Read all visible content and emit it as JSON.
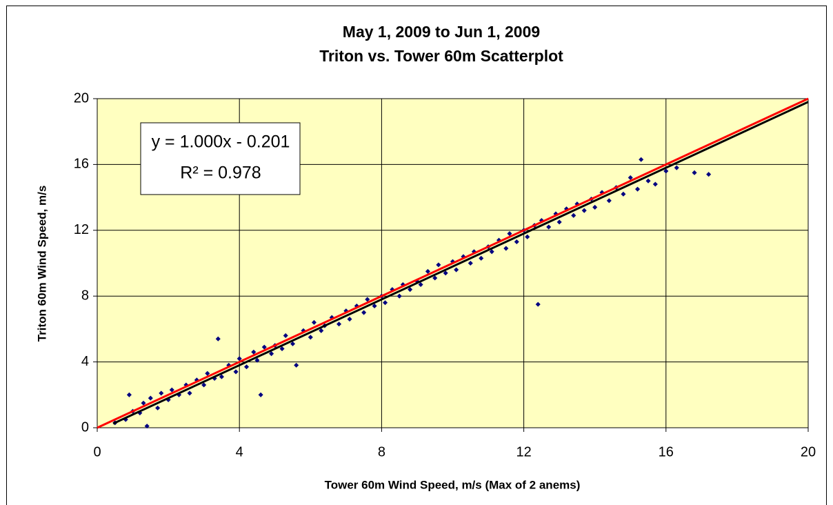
{
  "chart_data": {
    "type": "scatter",
    "title": [
      "May 1, 2009 to Jun 1, 2009",
      "Triton vs. Tower 60m Scatterplot"
    ],
    "x_label": "Tower 60m Wind Speed, m/s (Max of 2 anems)",
    "y_label": "Triton 60m Wind Speed, m/s",
    "annotations": [
      "y = 1.000x - 0.201",
      "R² = 0.978"
    ],
    "xlim": [
      0,
      20
    ],
    "ylim": [
      0,
      20
    ],
    "xticks": [
      0,
      4,
      8,
      12,
      16,
      20
    ],
    "yticks": [
      0,
      4,
      8,
      12,
      16,
      20
    ],
    "grid": true,
    "background": "#ffffc0",
    "x": [
      0.5,
      0.8,
      0.9,
      1.0,
      1.2,
      1.3,
      1.4,
      1.5,
      1.7,
      1.8,
      2.0,
      2.1,
      2.3,
      2.5,
      2.6,
      2.8,
      3.0,
      3.1,
      3.3,
      3.4,
      3.5,
      3.7,
      3.9,
      4.0,
      4.2,
      4.4,
      4.5,
      4.6,
      4.7,
      4.9,
      5.0,
      5.2,
      5.3,
      5.5,
      5.6,
      5.8,
      6.0,
      6.1,
      6.3,
      6.4,
      6.6,
      6.8,
      7.0,
      7.1,
      7.3,
      7.5,
      7.6,
      7.8,
      8.0,
      8.1,
      8.3,
      8.5,
      8.6,
      8.8,
      9.0,
      9.1,
      9.3,
      9.5,
      9.6,
      9.8,
      10.0,
      10.1,
      10.3,
      10.5,
      10.6,
      10.8,
      11.0,
      11.1,
      11.3,
      11.5,
      11.6,
      11.8,
      12.0,
      12.1,
      12.3,
      12.4,
      12.5,
      12.7,
      12.9,
      13.0,
      13.2,
      13.4,
      13.5,
      13.7,
      13.9,
      14.0,
      14.2,
      14.4,
      14.6,
      14.8,
      15.0,
      15.2,
      15.3,
      15.5,
      15.7,
      16.0,
      16.3,
      16.8,
      17.2
    ],
    "series": [
      {
        "color": "#000080",
        "values": [
          0.3,
          0.5,
          2.0,
          1.0,
          0.9,
          1.5,
          0.1,
          1.8,
          1.2,
          2.1,
          1.7,
          2.3,
          2.0,
          2.6,
          2.1,
          2.9,
          2.6,
          3.3,
          3.0,
          5.4,
          3.1,
          3.8,
          3.4,
          4.2,
          3.7,
          4.6,
          4.1,
          2.0,
          4.9,
          4.5,
          5.0,
          4.8,
          5.6,
          5.1,
          3.8,
          5.9,
          5.5,
          6.4,
          5.9,
          6.2,
          6.7,
          6.3,
          7.1,
          6.6,
          7.4,
          7.0,
          7.8,
          7.4,
          8.0,
          7.6,
          8.4,
          8.0,
          8.7,
          8.4,
          8.9,
          8.7,
          9.5,
          9.1,
          9.9,
          9.4,
          10.1,
          9.6,
          10.4,
          10.0,
          10.7,
          10.3,
          11.0,
          10.7,
          11.4,
          10.9,
          11.8,
          11.3,
          12.0,
          11.6,
          12.3,
          7.5,
          12.6,
          12.2,
          13.0,
          12.5,
          13.3,
          12.9,
          13.6,
          13.2,
          13.9,
          13.4,
          14.3,
          13.8,
          14.6,
          14.2,
          15.2,
          14.5,
          16.3,
          15.0,
          14.8,
          15.6,
          15.8,
          15.5,
          15.4
        ]
      }
    ],
    "lines": [
      {
        "color": "#000000",
        "x": [
          0.45,
          20
        ],
        "values": [
          0.25,
          19.8
        ]
      },
      {
        "color": "#ff0000",
        "x": [
          0,
          20
        ],
        "values": [
          0,
          20
        ]
      }
    ]
  }
}
